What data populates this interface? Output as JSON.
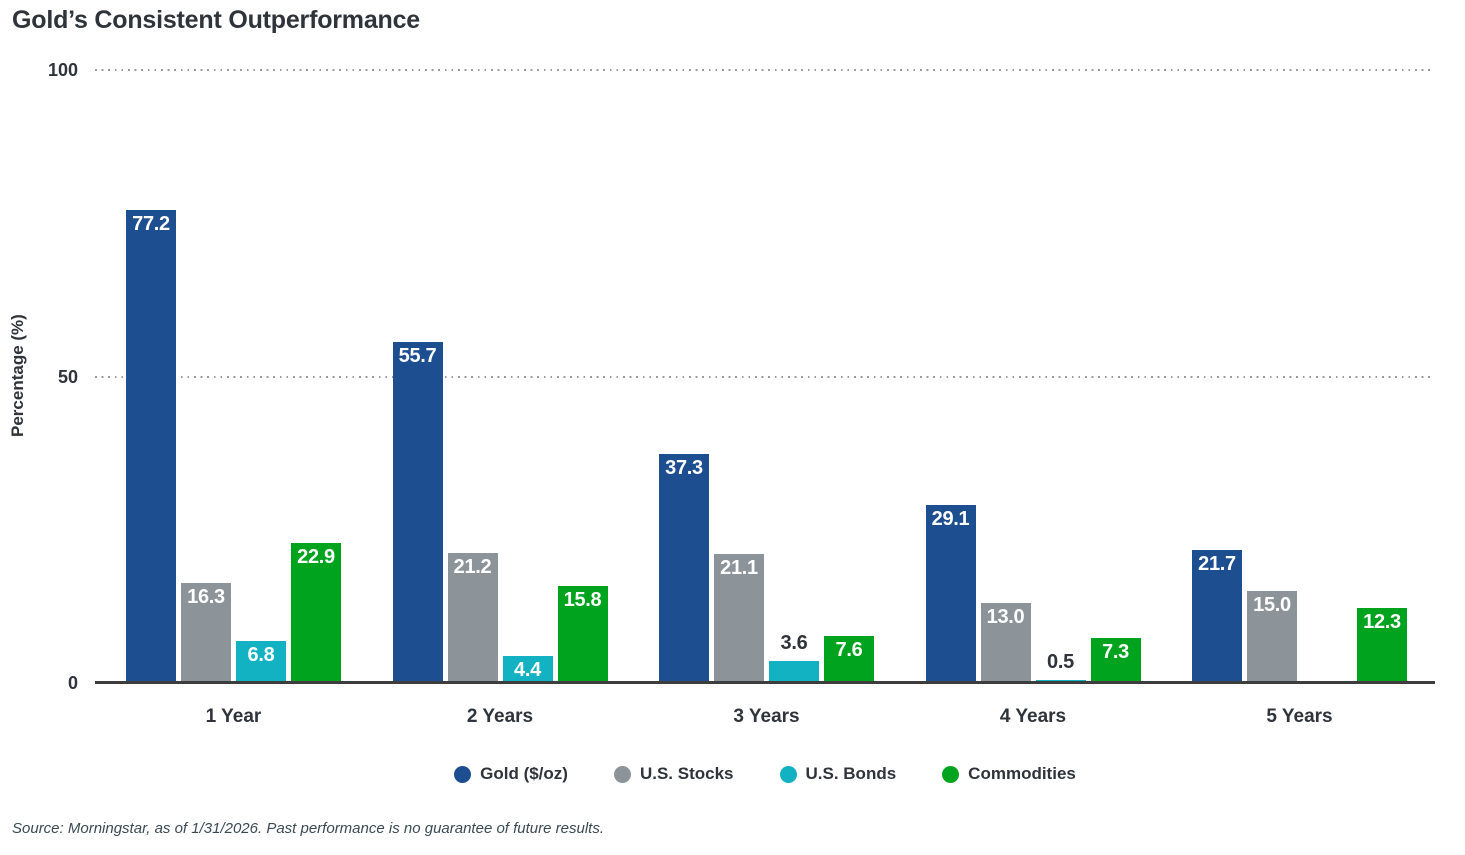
{
  "page": {
    "title_label": "Gold’s Consistent Outperformance"
  },
  "chart_data": {
    "type": "bar",
    "title": "Gold’s Consistent Outperformance",
    "ylabel": "Percentage (%)",
    "ylim": [
      0,
      100
    ],
    "yticks": [
      0,
      50,
      100
    ],
    "gridlines": {
      "style": "dotted",
      "orientation": "horizontal",
      "at": [
        50,
        100
      ]
    },
    "legend_position": "bottom",
    "value_label_decimals": 1,
    "categories": [
      "1 Year",
      "2 Years",
      "3 Years",
      "4 Years",
      "5 Years"
    ],
    "series": [
      {
        "name": "Gold ($/oz)",
        "color": "#1d4e8f",
        "values": [
          77.2,
          55.7,
          37.3,
          29.1,
          21.7
        ]
      },
      {
        "name": "U.S. Stocks",
        "color": "#8c9399",
        "values": [
          16.3,
          21.2,
          21.1,
          13.0,
          15.0
        ]
      },
      {
        "name": "U.S. Bonds",
        "color": "#12b2c3",
        "values": [
          6.8,
          4.4,
          3.6,
          0.5,
          null
        ]
      },
      {
        "name": "Commodities",
        "color": "#00a31e",
        "values": [
          22.9,
          15.8,
          7.6,
          7.3,
          12.3
        ]
      }
    ]
  },
  "footer": {
    "source_note": "Source: Morningstar, as of 1/31/2026. Past performance is no guarantee of future results."
  }
}
